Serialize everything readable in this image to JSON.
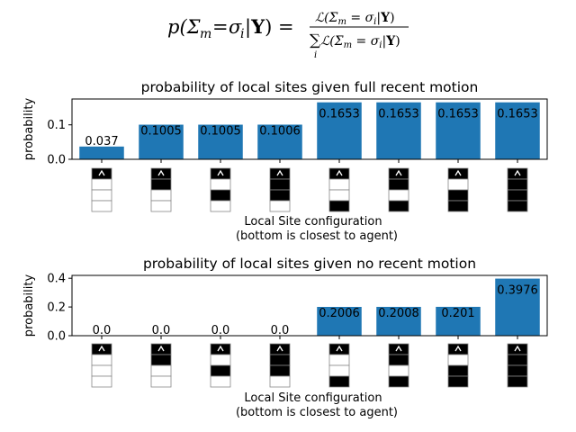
{
  "figure": {
    "formula": {
      "lhs": "p(Σ",
      "lhs_sub": "m",
      "lhs_rest": " = σ",
      "lhs_sub2": "i",
      "lhs_bar": "|Y) =",
      "numerator": "ℒ(Σm = σi|Y)",
      "denominator": "∑ℒ(Σm = σi|Y)",
      "denominator_sub": "i"
    }
  },
  "chart_data": [
    {
      "type": "bar",
      "title": "probability of local sites given full recent motion",
      "ylabel": "probability",
      "xlabel": "Local Site configuration",
      "xlabel2": "(bottom is closest to agent)",
      "ylim": [
        0,
        0.175
      ],
      "yticks": [
        "0.0",
        "0.1"
      ],
      "ytick_values": [
        0.0,
        0.1
      ],
      "values": [
        0.037,
        0.1005,
        0.1005,
        0.1006,
        0.1653,
        0.1653,
        0.1653,
        0.1653
      ],
      "value_labels": [
        "0.037",
        "0.1005",
        "0.1005",
        "0.1006",
        "0.1653",
        "0.1653",
        "0.1653",
        "0.1653"
      ],
      "bar_color": "#1f77b4",
      "configurations": [
        [
          0,
          0,
          0
        ],
        [
          1,
          0,
          0
        ],
        [
          0,
          1,
          0
        ],
        [
          1,
          1,
          0
        ],
        [
          0,
          0,
          1
        ],
        [
          1,
          0,
          1
        ],
        [
          0,
          1,
          1
        ],
        [
          1,
          1,
          1
        ]
      ]
    },
    {
      "type": "bar",
      "title": "probability of local sites given no recent motion",
      "ylabel": "probability",
      "xlabel": "Local Site configuration",
      "xlabel2": "(bottom is closest to agent)",
      "ylim": [
        0,
        0.42
      ],
      "yticks": [
        "0.0",
        "0.2",
        "0.4"
      ],
      "ytick_values": [
        0.0,
        0.2,
        0.4
      ],
      "values": [
        0.0,
        0.0,
        0.0,
        0.0,
        0.2006,
        0.2008,
        0.201,
        0.3976
      ],
      "value_labels": [
        "0.0",
        "0.0",
        "0.0",
        "0.0",
        "0.2006",
        "0.2008",
        "0.201",
        "0.3976"
      ],
      "bar_color": "#1f77b4",
      "configurations": [
        [
          0,
          0,
          0
        ],
        [
          1,
          0,
          0
        ],
        [
          0,
          1,
          0
        ],
        [
          1,
          1,
          0
        ],
        [
          0,
          0,
          1
        ],
        [
          1,
          0,
          1
        ],
        [
          0,
          1,
          1
        ],
        [
          1,
          1,
          1
        ]
      ]
    }
  ]
}
